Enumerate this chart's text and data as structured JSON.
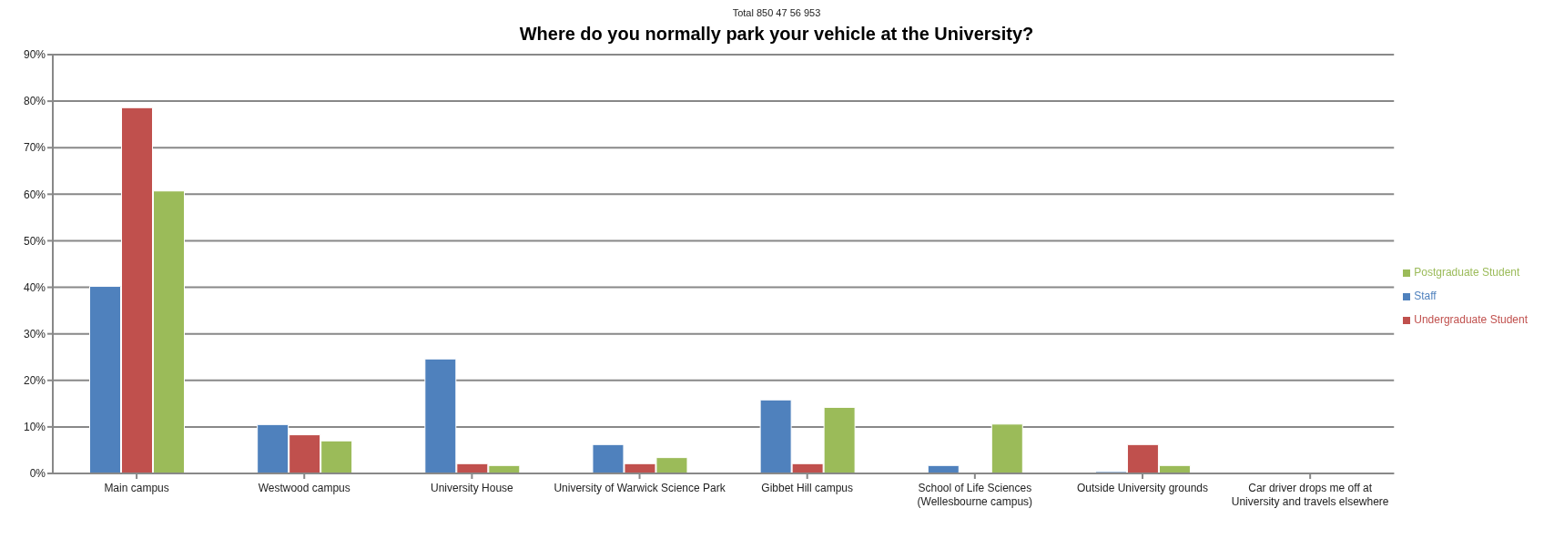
{
  "chart_data": {
    "type": "bar",
    "title": "Where do you normally park your vehicle at the University?",
    "annotations": [
      "Total 850 47 56 953"
    ],
    "categories": [
      "Main campus",
      "Westwood campus",
      "University House",
      "University of Warwick Science Park",
      "Gibbet Hill campus",
      "School of Life Sciences (Wellesbourne campus)",
      "Outside University grounds",
      "Car driver drops me off at University and travels elsewhere"
    ],
    "series": [
      {
        "name": "Staff",
        "color": "#4f81bd",
        "values": [
          40.2,
          10.5,
          24.6,
          6.2,
          15.8,
          1.7,
          0.4,
          0
        ]
      },
      {
        "name": "Undergraduate Student",
        "color": "#c0504d",
        "values": [
          78.6,
          8.3,
          2.1,
          2.1,
          2.1,
          0,
          6.2,
          0
        ]
      },
      {
        "name": "Postgraduate Student",
        "color": "#9bbb59",
        "values": [
          60.7,
          7.0,
          1.7,
          3.4,
          14.2,
          10.6,
          1.7,
          0
        ]
      }
    ],
    "ylim": [
      0,
      90
    ],
    "yticks": [
      {
        "value": 0,
        "label": "0%"
      },
      {
        "value": 10,
        "label": "10%"
      },
      {
        "value": 20,
        "label": "20%"
      },
      {
        "value": 30,
        "label": "30%"
      },
      {
        "value": 40,
        "label": "40%"
      },
      {
        "value": 50,
        "label": "50%"
      },
      {
        "value": 60,
        "label": "60%"
      },
      {
        "value": 70,
        "label": "70%"
      },
      {
        "value": 80,
        "label": "80%"
      },
      {
        "value": 90,
        "label": "90%"
      }
    ],
    "grid": "y",
    "legend": "right"
  }
}
